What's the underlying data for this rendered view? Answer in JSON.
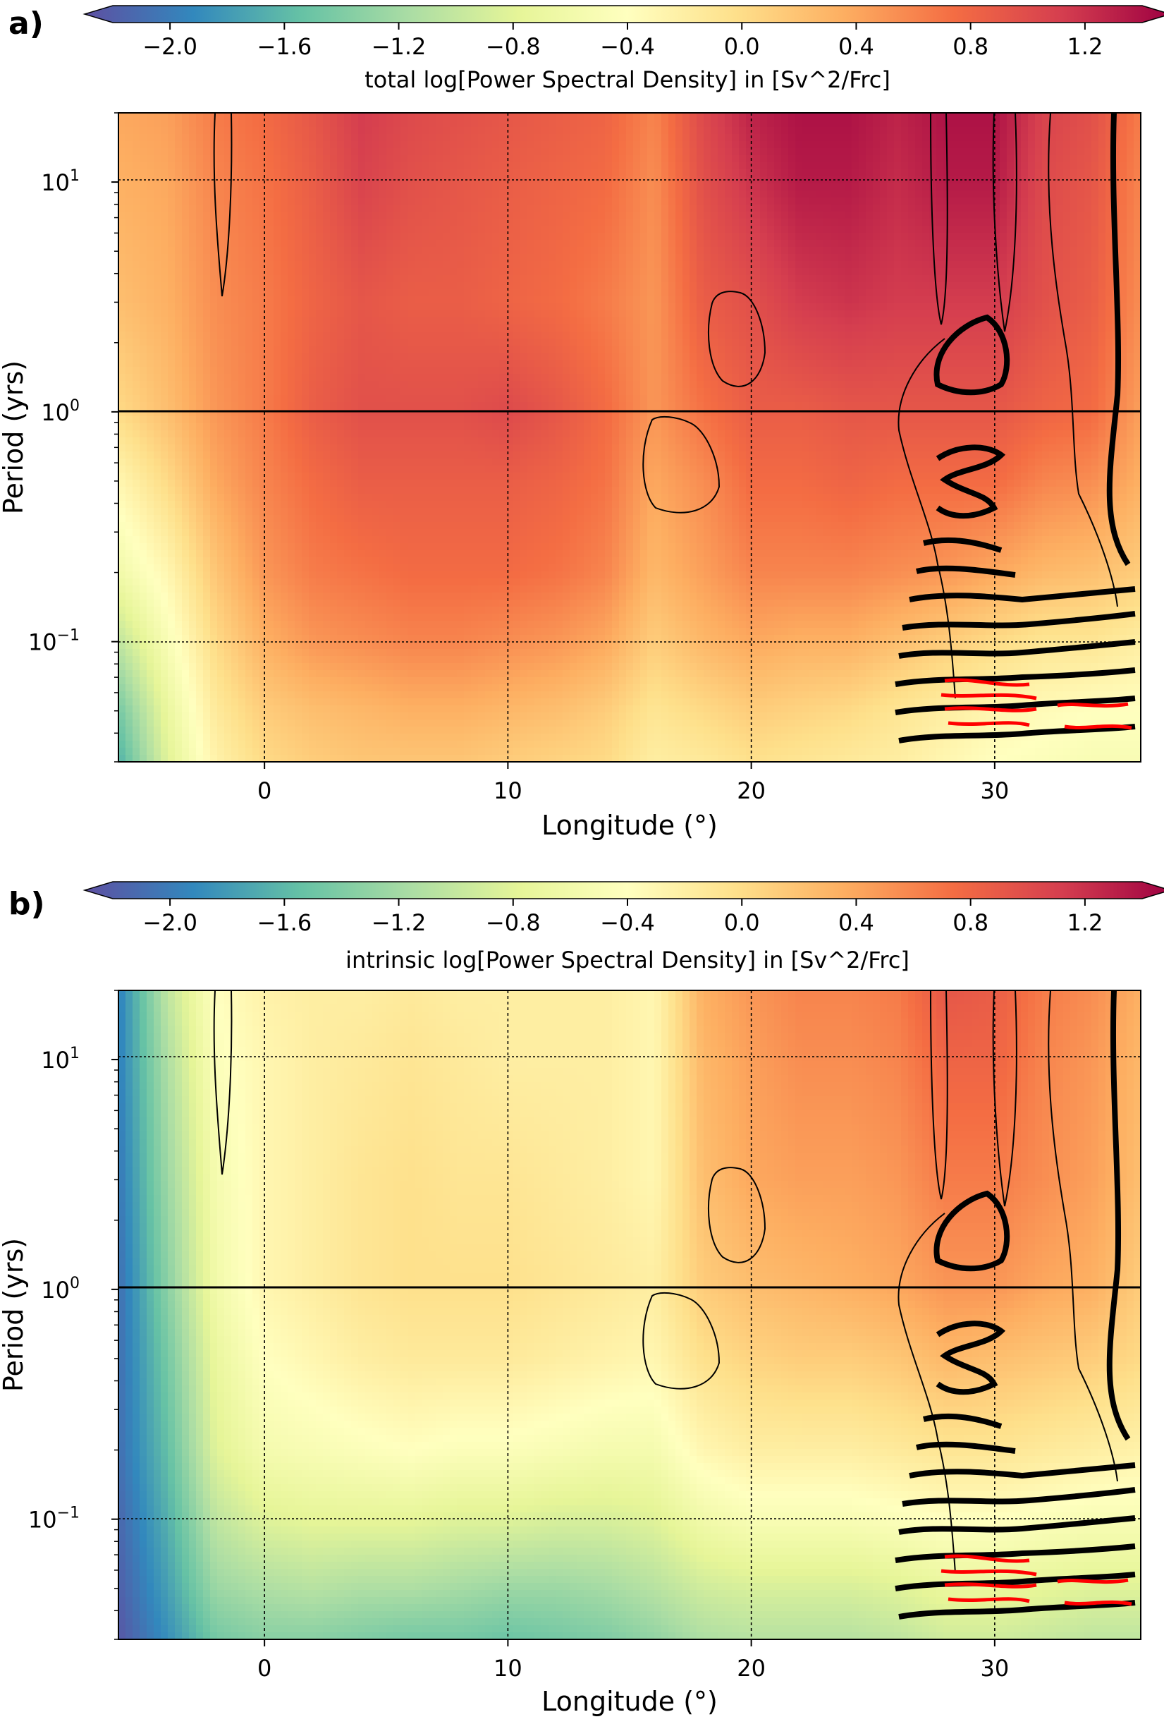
{
  "panels": [
    {
      "label": "a)",
      "colorbar": {
        "label": "total log[Power Spectral Density] in [Sv^2/Frc]",
        "ticks": [
          "−2.0",
          "−1.6",
          "−1.2",
          "−0.8",
          "−0.4",
          "0.0",
          "0.4",
          "0.8",
          "1.2"
        ]
      },
      "xlabel": "Longitude (°)",
      "ylabel": "Period (yrs)",
      "xticks": [
        "0",
        "10",
        "20",
        "30"
      ],
      "yticks": [
        "10^1",
        "10^0",
        "10^-1"
      ]
    },
    {
      "label": "b)",
      "colorbar": {
        "label": "intrinsic log[Power Spectral Density] in [Sv^2/Frc]",
        "ticks": [
          "−2.0",
          "−1.6",
          "−1.2",
          "−0.8",
          "−0.4",
          "0.0",
          "0.4",
          "0.8",
          "1.2"
        ]
      },
      "xlabel": "Longitude (°)",
      "ylabel": "Period (yrs)",
      "xticks": [
        "0",
        "10",
        "20",
        "30"
      ],
      "yticks": [
        "10^1",
        "10^0",
        "10^-1"
      ]
    }
  ],
  "chart_data": [
    {
      "type": "heatmap",
      "title": "",
      "xlabel": "Longitude (°)",
      "ylabel": "Period (yrs)",
      "xlim": [
        -6,
        36
      ],
      "ylim": [
        0.03,
        20
      ],
      "yscale": "log",
      "colorbar_label": "total log[Power Spectral Density] in [Sv^2/Frc]",
      "colorbar_range": [
        -2.2,
        1.4
      ],
      "colormap": "Spectral_r",
      "x": [
        -6,
        -4,
        -2,
        0,
        2,
        4,
        6,
        8,
        10,
        12,
        14,
        16,
        18,
        20,
        22,
        24,
        26,
        28,
        30,
        32,
        34,
        36
      ],
      "y": [
        20,
        10,
        3,
        1,
        0.5,
        0.2,
        0.1,
        0.05,
        0.03
      ],
      "z": [
        [
          0.35,
          0.4,
          0.6,
          0.7,
          0.85,
          1.05,
          0.95,
          0.9,
          0.85,
          0.8,
          0.75,
          0.55,
          0.95,
          1.2,
          1.3,
          1.3,
          1.2,
          1.3,
          1.3,
          1.0,
          0.9,
          0.6
        ],
        [
          0.3,
          0.35,
          0.55,
          0.65,
          0.8,
          1.0,
          0.9,
          0.85,
          0.8,
          0.75,
          0.7,
          0.5,
          0.9,
          1.1,
          1.25,
          1.25,
          1.15,
          1.25,
          1.25,
          0.95,
          0.85,
          0.55
        ],
        [
          0.2,
          0.3,
          0.5,
          0.6,
          0.75,
          0.85,
          0.8,
          0.8,
          0.75,
          0.7,
          0.6,
          0.45,
          0.8,
          0.9,
          1.05,
          1.1,
          1.05,
          1.05,
          1.05,
          0.9,
          0.8,
          0.5
        ],
        [
          0.0,
          0.2,
          0.45,
          0.6,
          0.8,
          0.9,
          0.9,
          0.9,
          0.95,
          0.85,
          0.7,
          0.45,
          0.65,
          0.8,
          0.8,
          0.85,
          0.85,
          0.85,
          0.85,
          0.75,
          0.7,
          0.4
        ],
        [
          -0.3,
          0.0,
          0.35,
          0.55,
          0.7,
          0.8,
          0.8,
          0.8,
          0.8,
          0.75,
          0.65,
          0.35,
          0.5,
          0.7,
          0.7,
          0.75,
          0.7,
          0.7,
          0.7,
          0.55,
          0.5,
          0.3
        ],
        [
          -0.6,
          -0.3,
          0.15,
          0.45,
          0.6,
          0.65,
          0.7,
          0.7,
          0.7,
          0.65,
          0.55,
          0.25,
          0.4,
          0.55,
          0.55,
          0.55,
          0.5,
          0.45,
          0.35,
          0.25,
          0.2,
          0.1
        ],
        [
          -1.0,
          -0.5,
          0.0,
          0.3,
          0.45,
          0.5,
          0.55,
          0.55,
          0.5,
          0.45,
          0.35,
          0.1,
          0.25,
          0.35,
          0.3,
          0.3,
          0.2,
          0.1,
          0.0,
          -0.1,
          -0.1,
          -0.2
        ],
        [
          -1.4,
          -0.7,
          -0.15,
          0.1,
          0.2,
          0.25,
          0.3,
          0.3,
          0.25,
          0.2,
          0.1,
          -0.1,
          0.0,
          0.1,
          0.05,
          0.0,
          -0.1,
          -0.2,
          -0.3,
          -0.35,
          -0.4,
          -0.4
        ],
        [
          -1.6,
          -0.8,
          -0.25,
          0.0,
          0.1,
          0.15,
          0.15,
          0.15,
          0.1,
          0.05,
          0.0,
          -0.2,
          -0.15,
          -0.05,
          -0.1,
          -0.15,
          -0.2,
          -0.3,
          -0.4,
          -0.45,
          -0.5,
          -0.5
        ]
      ]
    },
    {
      "type": "heatmap",
      "title": "",
      "xlabel": "Longitude (°)",
      "ylabel": "Period (yrs)",
      "xlim": [
        -6,
        36
      ],
      "ylim": [
        0.03,
        20
      ],
      "yscale": "log",
      "colorbar_label": "intrinsic log[Power Spectral Density] in [Sv^2/Frc]",
      "colorbar_range": [
        -2.2,
        1.4
      ],
      "colormap": "Spectral_r",
      "x": [
        -6,
        -4,
        -2,
        0,
        2,
        4,
        6,
        8,
        10,
        12,
        14,
        16,
        18,
        20,
        22,
        24,
        26,
        28,
        30,
        32,
        34,
        36
      ],
      "y": [
        20,
        10,
        3,
        1,
        0.5,
        0.2,
        0.1,
        0.05,
        0.03
      ],
      "z": [
        [
          -1.9,
          -1.0,
          -0.4,
          -0.25,
          -0.2,
          -0.2,
          -0.15,
          -0.2,
          -0.2,
          -0.2,
          -0.2,
          -0.3,
          0.3,
          0.45,
          0.55,
          0.55,
          0.6,
          0.85,
          0.8,
          0.6,
          0.5,
          0.3
        ],
        [
          -1.9,
          -1.1,
          -0.45,
          -0.3,
          -0.2,
          -0.15,
          -0.1,
          -0.15,
          -0.2,
          -0.2,
          -0.2,
          -0.3,
          0.25,
          0.4,
          0.5,
          0.5,
          0.55,
          0.75,
          0.75,
          0.55,
          0.45,
          0.25
        ],
        [
          -1.95,
          -1.2,
          -0.55,
          -0.3,
          -0.2,
          -0.1,
          -0.05,
          -0.1,
          -0.1,
          -0.15,
          -0.2,
          -0.3,
          0.2,
          0.35,
          0.4,
          0.4,
          0.45,
          0.6,
          0.6,
          0.5,
          0.4,
          0.2
        ],
        [
          -2.0,
          -1.3,
          -0.6,
          -0.3,
          -0.2,
          -0.1,
          -0.05,
          -0.05,
          -0.05,
          -0.1,
          -0.15,
          -0.2,
          0.1,
          0.2,
          0.25,
          0.3,
          0.35,
          0.45,
          0.45,
          0.35,
          0.3,
          0.1
        ],
        [
          -2.0,
          -1.4,
          -0.7,
          -0.4,
          -0.3,
          -0.2,
          -0.15,
          -0.15,
          -0.15,
          -0.2,
          -0.25,
          -0.3,
          -0.05,
          0.05,
          0.1,
          0.1,
          0.15,
          0.25,
          0.2,
          0.15,
          0.1,
          0.0
        ],
        [
          -2.0,
          -1.5,
          -0.8,
          -0.55,
          -0.5,
          -0.45,
          -0.4,
          -0.45,
          -0.45,
          -0.5,
          -0.55,
          -0.55,
          -0.3,
          -0.2,
          -0.2,
          -0.2,
          -0.15,
          -0.1,
          -0.1,
          -0.15,
          -0.2,
          -0.25
        ],
        [
          -2.05,
          -1.6,
          -1.0,
          -0.8,
          -0.75,
          -0.75,
          -0.75,
          -0.8,
          -0.8,
          -0.85,
          -0.85,
          -0.8,
          -0.6,
          -0.5,
          -0.5,
          -0.5,
          -0.45,
          -0.4,
          -0.4,
          -0.45,
          -0.5,
          -0.5
        ],
        [
          -2.1,
          -1.7,
          -1.2,
          -1.1,
          -1.05,
          -1.1,
          -1.1,
          -1.15,
          -1.2,
          -1.2,
          -1.15,
          -1.05,
          -0.9,
          -0.85,
          -0.85,
          -0.85,
          -0.8,
          -0.7,
          -0.7,
          -0.75,
          -0.8,
          -0.8
        ],
        [
          -2.15,
          -1.8,
          -1.4,
          -1.3,
          -1.3,
          -1.35,
          -1.4,
          -1.4,
          -1.45,
          -1.4,
          -1.35,
          -1.25,
          -1.1,
          -1.05,
          -1.05,
          -1.05,
          -1.0,
          -0.9,
          -0.9,
          -0.95,
          -1.0,
          -1.0
        ]
      ]
    }
  ]
}
